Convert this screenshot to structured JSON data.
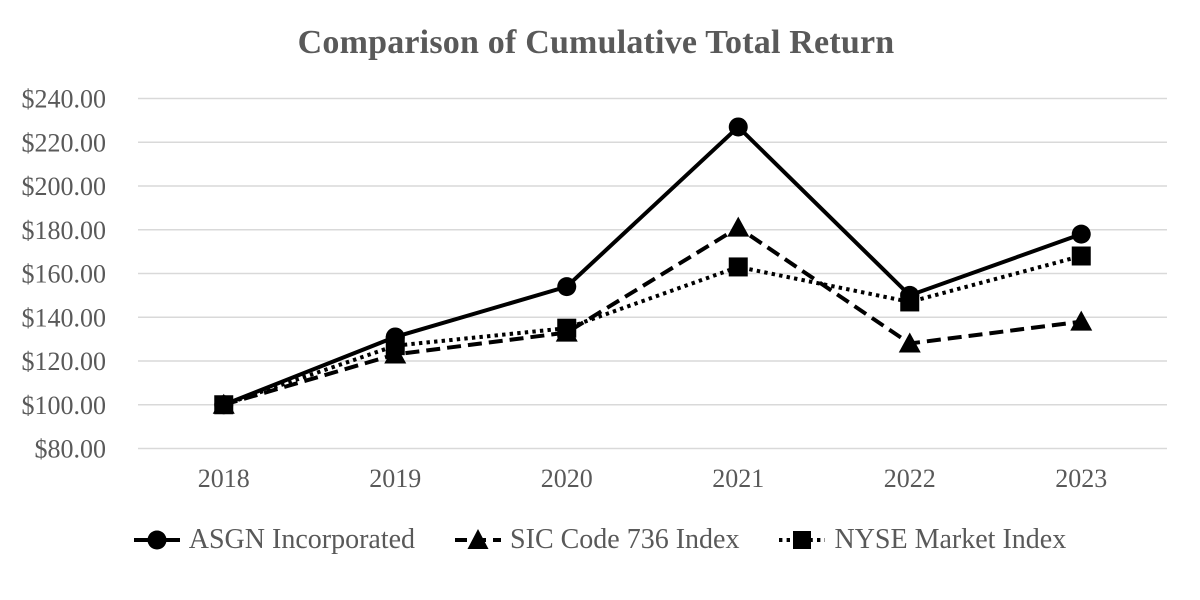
{
  "chart_data": {
    "type": "line",
    "title": "Comparison of Cumulative Total Return",
    "categories": [
      "2018",
      "2019",
      "2020",
      "2021",
      "2022",
      "2023"
    ],
    "series": [
      {
        "name": "ASGN Incorporated",
        "marker": "circle",
        "line_style": "solid",
        "values": [
          100,
          131,
          154,
          227,
          150,
          178
        ]
      },
      {
        "name": "SIC Code 736 Index",
        "marker": "triangle",
        "line_style": "dashed",
        "values": [
          100,
          123,
          133,
          181,
          128,
          138
        ]
      },
      {
        "name": "NYSE Market Index",
        "marker": "square",
        "line_style": "dotted",
        "values": [
          100,
          127,
          135,
          163,
          147,
          168
        ]
      }
    ],
    "y_axis": {
      "min": 80,
      "max": 240,
      "step": 20,
      "tick_labels": [
        "$240.00",
        "$220.00",
        "$200.00",
        "$180.00",
        "$160.00",
        "$140.00",
        "$120.00",
        "$100.00",
        "$80.00"
      ]
    },
    "x_axis": {
      "tick_labels": [
        "2018",
        "2019",
        "2020",
        "2021",
        "2022",
        "2023"
      ]
    },
    "legend_position": "bottom",
    "grid": "horizontal",
    "colors": {
      "series": "#000000",
      "title_text": "#595959",
      "axis_text": "#595959",
      "gridline": "#d9d9d9",
      "background": "#ffffff"
    }
  }
}
